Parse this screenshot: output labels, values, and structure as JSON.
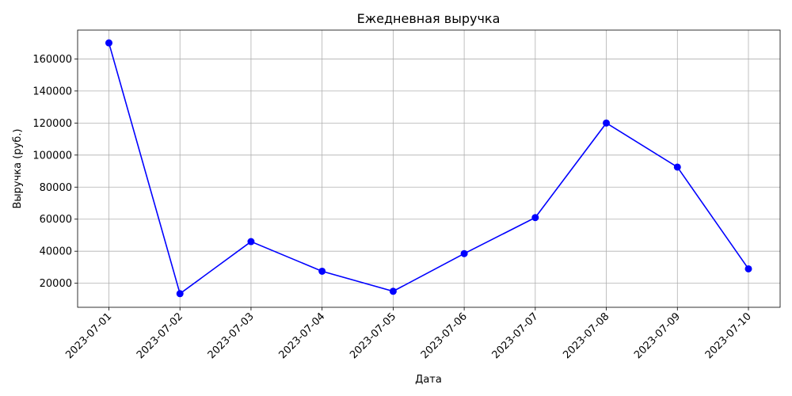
{
  "chart_data": {
    "type": "line",
    "title": "Ежедневная выручка",
    "xlabel": "Дата",
    "ylabel": "Выручка (руб.)",
    "categories": [
      "2023-07-01",
      "2023-07-02",
      "2023-07-03",
      "2023-07-04",
      "2023-07-05",
      "2023-07-06",
      "2023-07-07",
      "2023-07-08",
      "2023-07-09",
      "2023-07-10"
    ],
    "series": [
      {
        "values": [
          170000,
          13500,
          46000,
          27500,
          15000,
          38500,
          61000,
          120000,
          92500,
          29000
        ],
        "color": "#0000ff"
      }
    ],
    "yticks": [
      20000,
      40000,
      60000,
      80000,
      100000,
      120000,
      140000,
      160000
    ],
    "ylim": [
      5000,
      178000
    ],
    "grid": true,
    "marker": "circle"
  }
}
